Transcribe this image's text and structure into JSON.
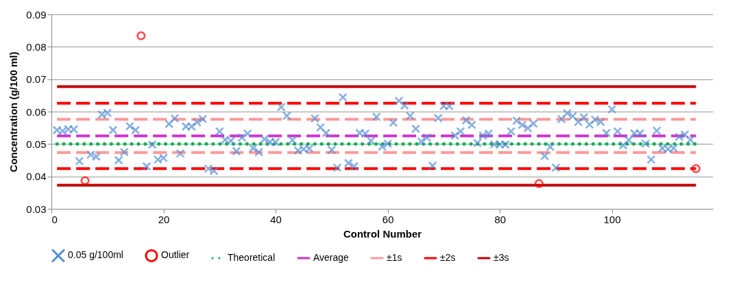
{
  "chart_data": {
    "type": "line",
    "xlabel": "Control Number",
    "ylabel": "Concentration (g/100 ml)",
    "xlim": [
      0,
      118
    ],
    "xticks": [
      0,
      20,
      40,
      60,
      80,
      100
    ],
    "ylim": [
      0.03,
      0.09
    ],
    "yticks": [
      0.03,
      0.04,
      0.05,
      0.06,
      0.07,
      0.08,
      0.09
    ],
    "grid": "y",
    "legend": "bottom",
    "series": [
      {
        "name": "0.05 g/100ml",
        "type": "scatter",
        "marker": "cross",
        "color": "#558ed5",
        "x": [
          1,
          2,
          3,
          4,
          5,
          7,
          8,
          9,
          10,
          11,
          12,
          13,
          14,
          15,
          17,
          18,
          19,
          20,
          21,
          22,
          23,
          24,
          25,
          26,
          27,
          28,
          29,
          30,
          31,
          32,
          33,
          34,
          35,
          36,
          37,
          38,
          39,
          40,
          41,
          42,
          43,
          44,
          45,
          46,
          47,
          48,
          49,
          50,
          51,
          52,
          53,
          54,
          55,
          56,
          57,
          58,
          59,
          60,
          61,
          62,
          63,
          64,
          65,
          66,
          67,
          68,
          69,
          70,
          71,
          72,
          73,
          74,
          75,
          76,
          77,
          78,
          79,
          80,
          81,
          82,
          83,
          84,
          85,
          86,
          88,
          89,
          90,
          91,
          92,
          93,
          94,
          95,
          96,
          97,
          98,
          99,
          100,
          101,
          102,
          103,
          104,
          105,
          106,
          107,
          108,
          109,
          110,
          111,
          112,
          113,
          114
        ],
        "values": [
          0.0543,
          0.054,
          0.0546,
          0.0545,
          0.0447,
          0.0467,
          0.0461,
          0.0591,
          0.0596,
          0.0543,
          0.045,
          0.0475,
          0.0555,
          0.0543,
          0.0431,
          0.0498,
          0.0452,
          0.0457,
          0.0562,
          0.0579,
          0.0471,
          0.0554,
          0.0554,
          0.0567,
          0.0577,
          0.0424,
          0.0417,
          0.0539,
          0.0513,
          0.051,
          0.0478,
          0.052,
          0.0532,
          0.0487,
          0.0475,
          0.0515,
          0.0506,
          0.0506,
          0.0614,
          0.0587,
          0.0512,
          0.048,
          0.0484,
          0.0486,
          0.0579,
          0.0551,
          0.0534,
          0.0482,
          0.0427,
          0.0644,
          0.0441,
          0.0431,
          0.0534,
          0.0532,
          0.051,
          0.0584,
          0.0492,
          0.0501,
          0.0566,
          0.0633,
          0.0619,
          0.0587,
          0.0547,
          0.0508,
          0.052,
          0.0433,
          0.058,
          0.0617,
          0.0617,
          0.0526,
          0.0539,
          0.0573,
          0.0559,
          0.0503,
          0.0526,
          0.0532,
          0.0499,
          0.0499,
          0.0498,
          0.0539,
          0.0572,
          0.0559,
          0.0549,
          0.0563,
          0.0463,
          0.0491,
          0.0427,
          0.0577,
          0.0595,
          0.0586,
          0.0568,
          0.0582,
          0.056,
          0.0575,
          0.0568,
          0.0534,
          0.0607,
          0.0539,
          0.0496,
          0.0512,
          0.0533,
          0.0533,
          0.0501,
          0.0452,
          0.0541,
          0.0487,
          0.0484,
          0.0487,
          0.0522,
          0.0529,
          0.0513
        ]
      },
      {
        "name": "Outlier",
        "type": "scatter",
        "marker": "circle",
        "color": "#ff0000",
        "x": [
          6,
          16,
          87,
          115
        ],
        "values": [
          0.0387,
          0.0834,
          0.0378,
          0.0424
        ]
      },
      {
        "name": "Theoretical",
        "line_style": "dotted",
        "color": "#00b050",
        "x": [
          1,
          115
        ],
        "values": [
          0.05,
          0.05
        ]
      },
      {
        "name": "Average",
        "line_style": "dashed",
        "color": "#cc33cc",
        "x": [
          1,
          115
        ],
        "values": [
          0.0525,
          0.0525
        ]
      },
      {
        "name": "±1s",
        "line_style": "dashed",
        "color": "#ff9999",
        "x": [
          1,
          115
        ],
        "values": [
          0.0576,
          0.0576
        ]
      },
      {
        "line_style": "dashed",
        "color": "#ff9999",
        "x": [
          1,
          115
        ],
        "values": [
          0.0474,
          0.0474
        ]
      },
      {
        "name": "±2s",
        "line_style": "dashed",
        "color": "#ff0000",
        "x": [
          1,
          115
        ],
        "values": [
          0.0626,
          0.0626
        ]
      },
      {
        "line_style": "dashed",
        "color": "#ff0000",
        "x": [
          1,
          115
        ],
        "values": [
          0.0424,
          0.0424
        ]
      },
      {
        "name": "±3s",
        "line_style": "solid",
        "color": "#c00000",
        "x": [
          1,
          115
        ],
        "values": [
          0.0677,
          0.0677
        ]
      },
      {
        "line_style": "solid",
        "color": "#c00000",
        "x": [
          1,
          115
        ],
        "values": [
          0.0373,
          0.0373
        ]
      }
    ]
  }
}
